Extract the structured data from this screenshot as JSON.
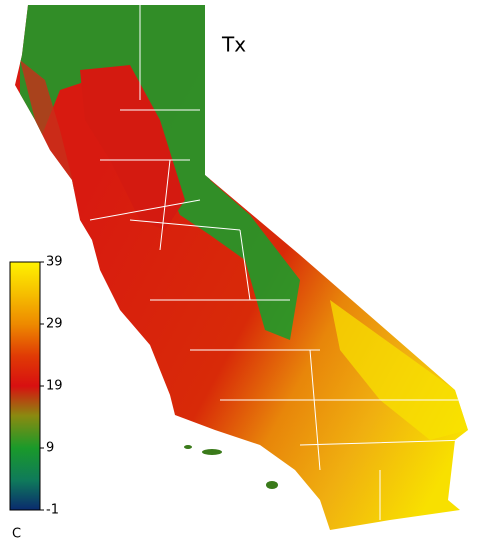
{
  "map": {
    "title": "Tx",
    "colorbar": {
      "unit": "C",
      "lim": [
        -1,
        39
      ],
      "ticks": [
        -1,
        9,
        19,
        29,
        39
      ]
    }
  }
}
